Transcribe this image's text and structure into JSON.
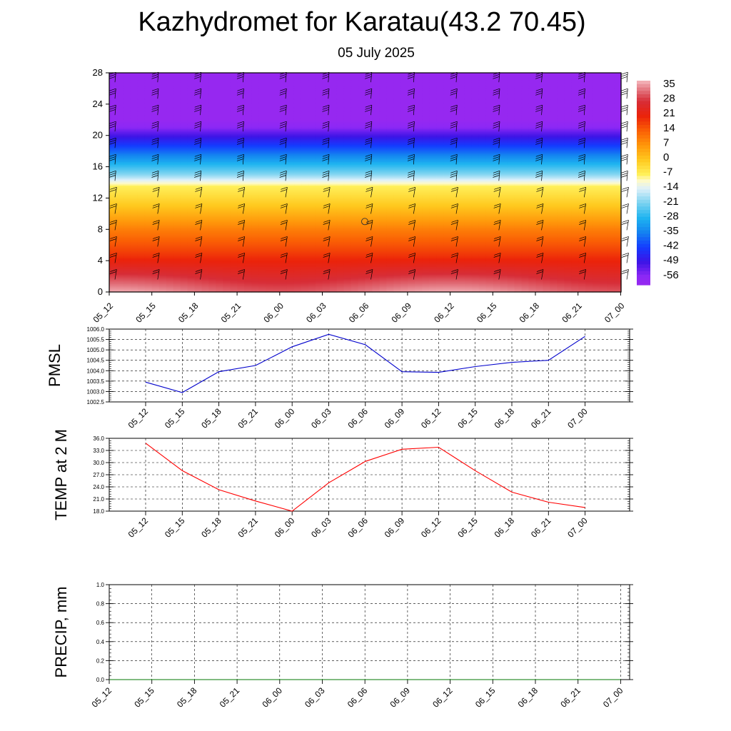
{
  "title": "Kazhydromet for Karatau(43.2 70.45)",
  "subtitle": "05 July 2025",
  "time_labels": [
    "05_12",
    "05_15",
    "05_18",
    "05_21",
    "06_00",
    "06_03",
    "06_06",
    "06_09",
    "06_12",
    "06_15",
    "06_18",
    "06_21",
    "07_00"
  ],
  "colors": {
    "pmsl_line": "#0000cc",
    "temp_line": "#ff0000",
    "precip_line": "#007700",
    "grid": "#000000"
  },
  "chart_data": [
    {
      "type": "heatmap",
      "title": "",
      "ylabel": "",
      "ylim": [
        0,
        28
      ],
      "yticks": [
        0,
        4,
        8,
        12,
        16,
        20,
        24,
        28
      ],
      "categories": [
        "05_12",
        "05_15",
        "05_18",
        "05_21",
        "06_00",
        "06_03",
        "06_06",
        "06_09",
        "06_12",
        "06_15",
        "06_18",
        "06_21",
        "07_00"
      ],
      "colorbar_labels": [
        "35",
        "28",
        "21",
        "14",
        "7",
        "0",
        "-7",
        "-14",
        "-21",
        "-28",
        "-35",
        "-42",
        "-49",
        "-56"
      ],
      "colorbar_range": [
        -60,
        38
      ],
      "profile": [
        {
          "h": 0,
          "v": 33
        },
        {
          "h": 2,
          "v": 27
        },
        {
          "h": 5,
          "v": 18
        },
        {
          "h": 8,
          "v": 10
        },
        {
          "h": 11,
          "v": 0
        },
        {
          "h": 13.5,
          "v": -7
        },
        {
          "h": 15,
          "v": -20
        },
        {
          "h": 17,
          "v": -32
        },
        {
          "h": 19,
          "v": -44
        },
        {
          "h": 21,
          "v": -56
        },
        {
          "h": 22,
          "v": -60
        },
        {
          "h": 28,
          "v": -60
        }
      ],
      "surface_warm_hours": [
        0,
        24
      ],
      "wind_barbs": true
    },
    {
      "type": "line",
      "ylabel": "PMSL",
      "ylim": [
        1002.5,
        1006.0
      ],
      "yticks": [
        "1002.5",
        "1003.0",
        "1003.5",
        "1004.0",
        "1004.5",
        "1005.0",
        "1005.5",
        "1006.0"
      ],
      "categories": [
        "05_12",
        "05_15",
        "05_18",
        "05_21",
        "06_00",
        "06_03",
        "06_06",
        "06_09",
        "06_12",
        "06_15",
        "06_18",
        "06_21",
        "07_00"
      ],
      "series": [
        {
          "values": [
            1003.45,
            1002.95,
            1003.95,
            1004.25,
            1005.15,
            1005.75,
            1005.25,
            1003.95,
            1003.92,
            1004.2,
            1004.4,
            1004.5,
            1005.65
          ]
        }
      ],
      "grid": true
    },
    {
      "type": "line",
      "ylabel": "TEMP at 2 M",
      "ylim": [
        18.0,
        36.0
      ],
      "yticks": [
        "18.0",
        "21.0",
        "24.0",
        "27.0",
        "30.0",
        "33.0",
        "36.0"
      ],
      "categories": [
        "05_12",
        "05_15",
        "05_18",
        "05_21",
        "06_00",
        "06_03",
        "06_06",
        "06_09",
        "06_12",
        "06_15",
        "06_18",
        "06_21",
        "07_00"
      ],
      "series": [
        {
          "values": [
            34.8,
            28.0,
            23.3,
            20.5,
            18.0,
            25.0,
            30.3,
            33.3,
            33.8,
            28.0,
            22.7,
            20.2,
            18.9
          ]
        }
      ],
      "grid": true
    },
    {
      "type": "line",
      "ylabel": "PRECIP, mm",
      "ylim": [
        0.0,
        1.0
      ],
      "yticks": [
        "0.0",
        "0.2",
        "0.4",
        "0.6",
        "0.8",
        "1.0"
      ],
      "categories": [
        "05_12",
        "05_15",
        "05_18",
        "05_21",
        "06_00",
        "06_03",
        "06_06",
        "06_09",
        "06_12",
        "06_15",
        "06_18",
        "06_21",
        "07_00"
      ],
      "series": [
        {
          "values": [
            0,
            0,
            0,
            0,
            0,
            0,
            0,
            0,
            0,
            0,
            0,
            0,
            0
          ]
        }
      ],
      "grid": true
    }
  ]
}
